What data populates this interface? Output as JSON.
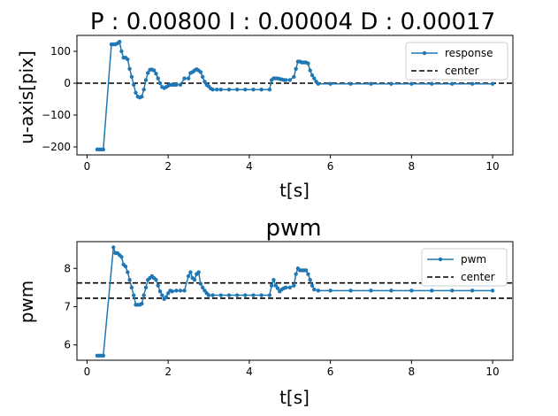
{
  "chart_data": [
    {
      "type": "line",
      "title": "P : 0.00800   I : 0.00004   D : 0.00017",
      "xlabel": "t[s]",
      "ylabel": "u-axis[pix]",
      "xlim": [
        -0.25,
        10.5
      ],
      "ylim": [
        -225,
        150
      ],
      "xticks": [
        0,
        2,
        4,
        6,
        8,
        10
      ],
      "xtick_labels": [
        "0",
        "2",
        "4",
        "6",
        "8",
        "10"
      ],
      "yticks": [
        -200,
        -100,
        0,
        100
      ],
      "ytick_labels": [
        "−200",
        "−100",
        "0",
        "100"
      ],
      "legend_position": "top-right",
      "legend": [
        "response",
        "center"
      ],
      "series": [
        {
          "name": "response",
          "style": "line-with-dots",
          "color": "#1f77b4",
          "x": [
            0.25,
            0.3,
            0.35,
            0.4,
            0.6,
            0.65,
            0.7,
            0.75,
            0.8,
            0.85,
            0.9,
            0.95,
            1.0,
            1.05,
            1.1,
            1.15,
            1.2,
            1.25,
            1.3,
            1.35,
            1.4,
            1.45,
            1.5,
            1.55,
            1.6,
            1.65,
            1.7,
            1.75,
            1.8,
            1.85,
            1.9,
            1.95,
            2.0,
            2.05,
            2.1,
            2.15,
            2.2,
            2.3,
            2.4,
            2.5,
            2.55,
            2.6,
            2.65,
            2.7,
            2.75,
            2.8,
            2.85,
            2.9,
            2.95,
            3.0,
            3.05,
            3.1,
            3.2,
            3.3,
            3.5,
            3.7,
            3.9,
            4.1,
            4.3,
            4.5,
            4.55,
            4.6,
            4.65,
            4.7,
            4.75,
            4.8,
            4.85,
            4.9,
            5.0,
            5.1,
            5.15,
            5.2,
            5.25,
            5.3,
            5.35,
            5.4,
            5.45,
            5.5,
            5.55,
            5.6,
            5.65,
            5.7,
            6.0,
            6.5,
            7.0,
            7.5,
            8.0,
            8.5,
            9.0,
            9.5,
            10.0
          ],
          "values": [
            -208,
            -208,
            -208,
            -208,
            122,
            122,
            122,
            125,
            130,
            100,
            80,
            80,
            75,
            45,
            20,
            -5,
            -30,
            -42,
            -45,
            -42,
            -20,
            10,
            32,
            42,
            43,
            40,
            30,
            15,
            0,
            -12,
            -15,
            -12,
            -8,
            -5,
            -5,
            -5,
            -5,
            -5,
            15,
            15,
            32,
            35,
            40,
            44,
            40,
            35,
            20,
            5,
            -5,
            -10,
            -17,
            -20,
            -20,
            -20,
            -20,
            -20,
            -20,
            -20,
            -20,
            -20,
            10,
            15,
            15,
            15,
            13,
            12,
            10,
            10,
            10,
            20,
            45,
            68,
            68,
            65,
            65,
            65,
            62,
            40,
            25,
            15,
            5,
            -2,
            -2,
            -2,
            -2,
            -2,
            -2,
            -2,
            -2,
            -2,
            -2
          ]
        },
        {
          "name": "center",
          "style": "dashed",
          "color": "#000000",
          "y": 0
        }
      ]
    },
    {
      "type": "line",
      "title": "pwm",
      "xlabel": "t[s]",
      "ylabel": "pwm",
      "xlim": [
        -0.25,
        10.5
      ],
      "ylim": [
        5.6,
        8.7
      ],
      "xticks": [
        0,
        2,
        4,
        6,
        8,
        10
      ],
      "xtick_labels": [
        "0",
        "2",
        "4",
        "6",
        "8",
        "10"
      ],
      "yticks": [
        6,
        7,
        8
      ],
      "ytick_labels": [
        "6",
        "7",
        "8"
      ],
      "legend_position": "top-right",
      "legend": [
        "pwm",
        "center"
      ],
      "series": [
        {
          "name": "pwm",
          "style": "line-with-dots",
          "color": "#1f77b4",
          "x": [
            0.25,
            0.3,
            0.35,
            0.4,
            0.65,
            0.7,
            0.75,
            0.8,
            0.85,
            0.9,
            0.95,
            1.0,
            1.05,
            1.1,
            1.15,
            1.2,
            1.25,
            1.3,
            1.35,
            1.4,
            1.45,
            1.5,
            1.55,
            1.6,
            1.65,
            1.7,
            1.75,
            1.8,
            1.85,
            1.9,
            1.95,
            2.0,
            2.05,
            2.1,
            2.2,
            2.3,
            2.4,
            2.5,
            2.55,
            2.6,
            2.65,
            2.7,
            2.75,
            2.8,
            2.85,
            2.9,
            2.95,
            3.0,
            3.1,
            3.3,
            3.5,
            3.7,
            3.9,
            4.1,
            4.3,
            4.5,
            4.55,
            4.6,
            4.65,
            4.7,
            4.75,
            4.8,
            4.85,
            4.9,
            5.0,
            5.1,
            5.15,
            5.2,
            5.25,
            5.3,
            5.35,
            5.4,
            5.45,
            5.5,
            5.55,
            5.6,
            5.7,
            6.0,
            6.5,
            7.0,
            7.5,
            8.0,
            8.5,
            9.0,
            9.5,
            10.0
          ],
          "values": [
            5.72,
            5.72,
            5.72,
            5.72,
            8.55,
            8.4,
            8.4,
            8.35,
            8.3,
            8.1,
            8.05,
            7.9,
            7.7,
            7.5,
            7.3,
            7.05,
            7.05,
            7.05,
            7.08,
            7.3,
            7.5,
            7.7,
            7.75,
            7.8,
            7.75,
            7.7,
            7.55,
            7.4,
            7.3,
            7.2,
            7.25,
            7.35,
            7.42,
            7.4,
            7.42,
            7.42,
            7.42,
            7.8,
            7.9,
            7.75,
            7.7,
            7.85,
            7.9,
            7.6,
            7.5,
            7.42,
            7.35,
            7.3,
            7.3,
            7.3,
            7.3,
            7.3,
            7.3,
            7.3,
            7.3,
            7.3,
            7.55,
            7.7,
            7.55,
            7.48,
            7.4,
            7.45,
            7.48,
            7.5,
            7.5,
            7.55,
            7.85,
            8.0,
            7.95,
            7.95,
            7.95,
            7.95,
            7.85,
            7.7,
            7.55,
            7.45,
            7.42,
            7.42,
            7.42,
            7.42,
            7.42,
            7.42,
            7.42,
            7.42,
            7.42,
            7.42
          ]
        },
        {
          "name": "center",
          "style": "dashed",
          "color": "#000000",
          "y": [
            7.62,
            7.22
          ]
        }
      ]
    }
  ]
}
